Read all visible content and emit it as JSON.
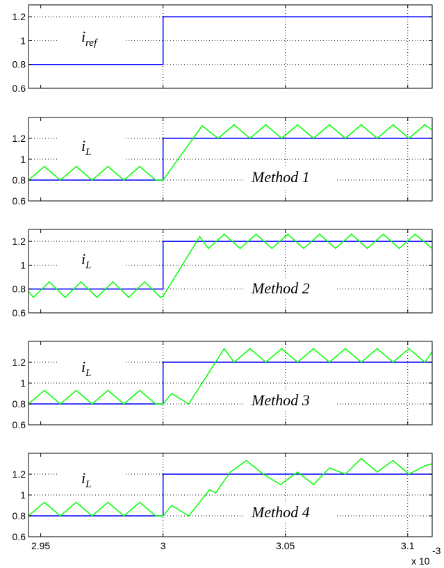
{
  "chart_data": [
    {
      "type": "line",
      "annotation": "i",
      "annotation_sub": "ref",
      "method_label": "",
      "ylim": [
        0.6,
        1.3
      ],
      "yticks": [
        "0.6",
        "0.8",
        "1",
        "1.2"
      ],
      "xlim": [
        2.945,
        3.11
      ],
      "grid": true,
      "series": [
        {
          "color": "#0000ff",
          "x": [
            2.945,
            3.0,
            3.0,
            3.11
          ],
          "y": [
            0.8,
            0.8,
            1.2,
            1.2
          ]
        }
      ]
    },
    {
      "type": "line",
      "annotation": "i",
      "annotation_sub": "L",
      "method_label": "Method 1",
      "ylim": [
        0.6,
        1.4
      ],
      "yticks": [
        "0.6",
        "0.8",
        "1",
        "1.2"
      ],
      "xlim": [
        2.945,
        3.11
      ],
      "grid": true,
      "series": [
        {
          "color": "#0000ff",
          "x": [
            2.945,
            3.0,
            3.0,
            3.11
          ],
          "y": [
            0.8,
            0.8,
            1.2,
            1.2
          ]
        },
        {
          "color": "#00ff00",
          "x": [
            2.945,
            2.9515,
            2.958,
            2.9645,
            2.971,
            2.9775,
            2.984,
            2.9905,
            2.997,
            3.0,
            3.016,
            3.0225,
            3.029,
            3.0355,
            3.042,
            3.0485,
            3.055,
            3.0615,
            3.068,
            3.0745,
            3.081,
            3.0875,
            3.094,
            3.1005,
            3.107,
            3.11
          ],
          "y": [
            0.8,
            0.93,
            0.8,
            0.93,
            0.8,
            0.93,
            0.8,
            0.93,
            0.8,
            0.8,
            1.32,
            1.2,
            1.33,
            1.2,
            1.33,
            1.2,
            1.33,
            1.2,
            1.33,
            1.2,
            1.33,
            1.2,
            1.33,
            1.2,
            1.33,
            1.28
          ]
        }
      ]
    },
    {
      "type": "line",
      "annotation": "i",
      "annotation_sub": "L",
      "method_label": "Method 2",
      "ylim": [
        0.6,
        1.3
      ],
      "yticks": [
        "0.6",
        "0.8",
        "1",
        "1.2"
      ],
      "xlim": [
        2.945,
        3.11
      ],
      "grid": true,
      "series": [
        {
          "color": "#0000ff",
          "x": [
            2.945,
            3.0,
            3.0,
            3.11
          ],
          "y": [
            0.8,
            0.8,
            1.2,
            1.2
          ]
        },
        {
          "color": "#00ff00",
          "x": [
            2.945,
            2.947,
            2.9535,
            2.96,
            2.9665,
            2.973,
            2.9795,
            2.986,
            2.9925,
            2.999,
            3.0,
            3.015,
            3.0185,
            3.025,
            3.0315,
            3.038,
            3.0445,
            3.051,
            3.0575,
            3.064,
            3.0705,
            3.077,
            3.0835,
            3.09,
            3.0965,
            3.103,
            3.11
          ],
          "y": [
            0.78,
            0.73,
            0.86,
            0.73,
            0.86,
            0.73,
            0.86,
            0.73,
            0.86,
            0.73,
            0.74,
            1.24,
            1.14,
            1.26,
            1.14,
            1.26,
            1.14,
            1.26,
            1.14,
            1.26,
            1.14,
            1.26,
            1.14,
            1.26,
            1.14,
            1.26,
            1.14
          ]
        }
      ]
    },
    {
      "type": "line",
      "annotation": "i",
      "annotation_sub": "L",
      "method_label": "Method 3",
      "ylim": [
        0.6,
        1.4
      ],
      "yticks": [
        "0.6",
        "0.8",
        "1",
        "1.2"
      ],
      "xlim": [
        2.945,
        3.11
      ],
      "grid": true,
      "series": [
        {
          "color": "#0000ff",
          "x": [
            2.945,
            3.0,
            3.0,
            3.11
          ],
          "y": [
            0.8,
            0.8,
            1.2,
            1.2
          ]
        },
        {
          "color": "#00ff00",
          "x": [
            2.945,
            2.9515,
            2.958,
            2.9645,
            2.971,
            2.9775,
            2.984,
            2.9905,
            2.997,
            3.0,
            3.0035,
            3.0105,
            3.025,
            3.029,
            3.0355,
            3.042,
            3.0485,
            3.055,
            3.0615,
            3.068,
            3.0745,
            3.081,
            3.0875,
            3.094,
            3.1005,
            3.107,
            3.11
          ],
          "y": [
            0.8,
            0.93,
            0.8,
            0.93,
            0.8,
            0.93,
            0.8,
            0.93,
            0.8,
            0.8,
            0.9,
            0.8,
            1.33,
            1.2,
            1.33,
            1.2,
            1.33,
            1.2,
            1.33,
            1.2,
            1.33,
            1.2,
            1.33,
            1.2,
            1.33,
            1.2,
            1.3
          ]
        }
      ]
    },
    {
      "type": "line",
      "annotation": "i",
      "annotation_sub": "L",
      "method_label": "Method 4",
      "ylim": [
        0.6,
        1.4
      ],
      "yticks": [
        "0.6",
        "0.8",
        "1",
        "1.2"
      ],
      "xlim": [
        2.945,
        3.11
      ],
      "grid": true,
      "xticks": [
        "2.95",
        "3",
        "3.05",
        "3.1"
      ],
      "xticks_values": [
        2.95,
        3.0,
        3.05,
        3.1
      ],
      "x_exponent_label": "x 10",
      "x_exponent_power": "-3",
      "series": [
        {
          "color": "#0000ff",
          "x": [
            2.945,
            3.0,
            3.0,
            3.11
          ],
          "y": [
            0.8,
            0.8,
            1.2,
            1.2
          ]
        },
        {
          "color": "#00ff00",
          "x": [
            2.945,
            2.9515,
            2.958,
            2.9645,
            2.971,
            2.9775,
            2.984,
            2.9905,
            2.997,
            3.0,
            3.0035,
            3.0105,
            3.019,
            3.0215,
            3.0275,
            3.034,
            3.041,
            3.048,
            3.055,
            3.0615,
            3.068,
            3.0745,
            3.081,
            3.0875,
            3.094,
            3.1005,
            3.107,
            3.11
          ],
          "y": [
            0.8,
            0.93,
            0.8,
            0.93,
            0.8,
            0.93,
            0.8,
            0.93,
            0.8,
            0.8,
            0.9,
            0.8,
            1.05,
            1.02,
            1.22,
            1.33,
            1.2,
            1.1,
            1.22,
            1.1,
            1.26,
            1.2,
            1.35,
            1.22,
            1.33,
            1.2,
            1.28,
            1.3
          ]
        }
      ]
    }
  ]
}
